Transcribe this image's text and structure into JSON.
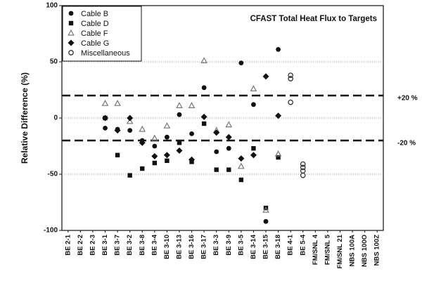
{
  "chart_data": {
    "type": "scatter",
    "title": "CFAST Total Heat Flux to Targets",
    "y_label": "Relative Difference (%)",
    "categories": [
      "BE 2-1",
      "BE 2-2",
      "BE 2-3",
      "BE 3-1",
      "BE 3-7",
      "BE 3-2",
      "BE 3-8",
      "BE 3-4",
      "BE 3-10",
      "BE 3-13",
      "BE 3-16",
      "BE 3-17",
      "BE 3-3",
      "BE 3-9",
      "BE 3-5",
      "BE 3-14",
      "BE 3-15",
      "BE 3-18",
      "BE 4-1",
      "BE 5-4",
      "FM/SNL 4",
      "FM/SNL 5",
      "FM/SNL 21",
      "NBS 100A",
      "NBS 100O",
      "NBS 100Z"
    ],
    "ylim": [
      -100,
      100
    ],
    "yticks": [
      -100,
      -50,
      0,
      50,
      100
    ],
    "grid": true,
    "reference_lines": [
      {
        "value": 20,
        "label": "+20 %"
      },
      {
        "value": -20,
        "label": "-20 %"
      }
    ],
    "legend": "upper left",
    "series": [
      {
        "name": "Cable B",
        "marker": "circle",
        "color": "#111111",
        "x": [
          "BE 3-1",
          "BE 3-7",
          "BE 3-2",
          "BE 3-8",
          "BE 3-4",
          "BE 3-10",
          "BE 3-13",
          "BE 3-16",
          "BE 3-17",
          "BE 3-3",
          "BE 3-9",
          "BE 3-5",
          "BE 3-14",
          "BE 3-15",
          "BE 3-18"
        ],
        "values": [
          -9,
          -10,
          -11,
          -20,
          -25,
          -17,
          3,
          -14,
          27,
          -30,
          -27,
          49,
          12,
          -92,
          61
        ]
      },
      {
        "name": "Cable D",
        "marker": "square",
        "color": "#111111",
        "x": [
          "BE 3-1",
          "BE 3-7",
          "BE 3-2",
          "BE 3-8",
          "BE 3-4",
          "BE 3-10",
          "BE 3-13",
          "BE 3-16",
          "BE 3-17",
          "BE 3-3",
          "BE 3-9",
          "BE 3-5",
          "BE 3-14",
          "BE 3-15",
          "BE 3-18"
        ],
        "values": [
          0,
          -33,
          -51,
          -45,
          -40,
          -38,
          -22,
          -39,
          -5,
          -46,
          -46,
          -55,
          -27,
          -80,
          -35
        ]
      },
      {
        "name": "Cable F",
        "marker": "triangle",
        "color": "#777777",
        "x": [
          "BE 3-1",
          "BE 3-7",
          "BE 3-2",
          "BE 3-8",
          "BE 3-4",
          "BE 3-10",
          "BE 3-13",
          "BE 3-16",
          "BE 3-17",
          "BE 3-3",
          "BE 3-9",
          "BE 3-5",
          "BE 3-14",
          "BE 3-15",
          "BE 3-18"
        ],
        "values": [
          13,
          13,
          -3,
          -10,
          -18,
          -7,
          11,
          11,
          51,
          -11,
          -6,
          -43,
          26,
          -82,
          -32
        ]
      },
      {
        "name": "Cable G",
        "marker": "diamond",
        "color": "#111111",
        "x": [
          "BE 3-1",
          "BE 3-7",
          "BE 3-2",
          "BE 3-8",
          "BE 3-4",
          "BE 3-10",
          "BE 3-13",
          "BE 3-16",
          "BE 3-17",
          "BE 3-3",
          "BE 3-9",
          "BE 3-5",
          "BE 3-14",
          "BE 3-15",
          "BE 3-18"
        ],
        "values": [
          0,
          -11,
          0,
          -22,
          -34,
          -33,
          -29,
          -37,
          1,
          -13,
          -17,
          -36,
          -33,
          37,
          2
        ]
      },
      {
        "name": "Miscellaneous",
        "marker": "open-circle",
        "color": "#333333",
        "x": [
          "BE 4-1",
          "BE 4-1",
          "BE 4-1",
          "BE 5-4",
          "BE 5-4",
          "BE 5-4",
          "BE 5-4"
        ],
        "values": [
          38,
          35,
          14,
          -41,
          -44,
          -47,
          -51
        ]
      }
    ]
  }
}
